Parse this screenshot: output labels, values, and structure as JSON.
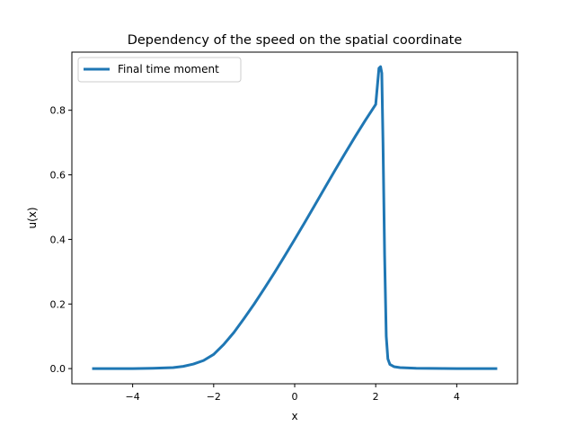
{
  "chart_data": {
    "type": "line",
    "title": "Dependency of the speed on the spatial coordinate",
    "xlabel": "x",
    "ylabel": "u(x)",
    "xlim": [
      -5.5,
      5.5
    ],
    "ylim": [
      -0.047,
      0.98
    ],
    "xticks": [
      -4,
      -2,
      0,
      2,
      4
    ],
    "xtick_labels": [
      "−4",
      "−2",
      "0",
      "2",
      "4"
    ],
    "yticks": [
      0.0,
      0.2,
      0.4,
      0.6,
      0.8
    ],
    "ytick_labels": [
      "0.0",
      "0.2",
      "0.4",
      "0.6",
      "0.8"
    ],
    "grid": false,
    "legend_position": "upper-left",
    "series": [
      {
        "name": "Final time moment",
        "color": "#1f77b4",
        "x": [
          -5.0,
          -4.0,
          -3.5,
          -3.0,
          -2.75,
          -2.5,
          -2.25,
          -2.0,
          -1.75,
          -1.5,
          -1.25,
          -1.0,
          -0.75,
          -0.5,
          -0.25,
          0.0,
          0.25,
          0.5,
          0.75,
          1.0,
          1.25,
          1.5,
          1.75,
          2.0,
          2.08,
          2.12,
          2.15,
          2.18,
          2.22,
          2.26,
          2.3,
          2.35,
          2.45,
          2.6,
          3.0,
          4.0,
          5.0
        ],
        "y": [
          0.0,
          0.0,
          0.001,
          0.003,
          0.007,
          0.014,
          0.025,
          0.044,
          0.075,
          0.112,
          0.155,
          0.2,
          0.248,
          0.297,
          0.348,
          0.4,
          0.453,
          0.507,
          0.561,
          0.615,
          0.668,
          0.72,
          0.77,
          0.818,
          0.93,
          0.935,
          0.915,
          0.7,
          0.35,
          0.1,
          0.03,
          0.013,
          0.006,
          0.003,
          0.001,
          0.0,
          0.0
        ]
      }
    ]
  }
}
